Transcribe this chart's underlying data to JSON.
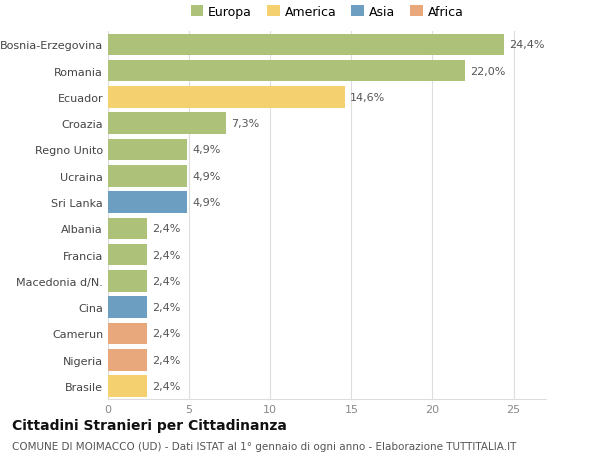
{
  "countries": [
    "Bosnia-Erzegovina",
    "Romania",
    "Ecuador",
    "Croazia",
    "Regno Unito",
    "Ucraina",
    "Sri Lanka",
    "Albania",
    "Francia",
    "Macedonia d/N.",
    "Cina",
    "Camerun",
    "Nigeria",
    "Brasile"
  ],
  "values": [
    24.4,
    22.0,
    14.6,
    7.3,
    4.9,
    4.9,
    4.9,
    2.4,
    2.4,
    2.4,
    2.4,
    2.4,
    2.4,
    2.4
  ],
  "labels": [
    "24,4%",
    "22,0%",
    "14,6%",
    "7,3%",
    "4,9%",
    "4,9%",
    "4,9%",
    "2,4%",
    "2,4%",
    "2,4%",
    "2,4%",
    "2,4%",
    "2,4%",
    "2,4%"
  ],
  "continents": [
    "Europa",
    "Europa",
    "America",
    "Europa",
    "Europa",
    "Europa",
    "Asia",
    "Europa",
    "Europa",
    "Europa",
    "Asia",
    "Africa",
    "Africa",
    "America"
  ],
  "colors": {
    "Europa": "#adc178",
    "America": "#f5d06e",
    "Asia": "#6b9ec0",
    "Africa": "#e8a87c"
  },
  "xlim": [
    0,
    27
  ],
  "xticks": [
    0,
    5,
    10,
    15,
    20,
    25
  ],
  "title": "Cittadini Stranieri per Cittadinanza",
  "subtitle": "COMUNE DI MOIMACCO (UD) - Dati ISTAT al 1° gennaio di ogni anno - Elaborazione TUTTITALIA.IT",
  "bg_color": "#ffffff",
  "grid_color": "#dddddd",
  "bar_height": 0.82,
  "label_fontsize": 8,
  "ytick_fontsize": 8,
  "xtick_fontsize": 8,
  "title_fontsize": 10,
  "subtitle_fontsize": 7.5
}
